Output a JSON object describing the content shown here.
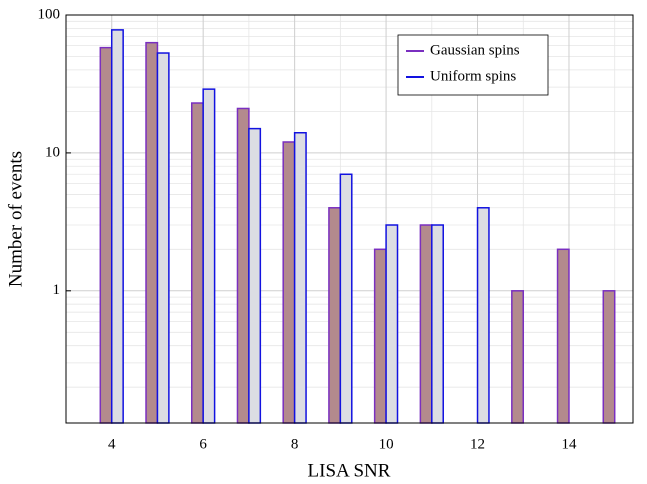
{
  "chart_data": {
    "type": "bar",
    "xlabel": "LISA SNR",
    "ylabel": "Number of events",
    "x": [
      4,
      5,
      6,
      7,
      8,
      9,
      10,
      11,
      12,
      13,
      14,
      15
    ],
    "series": [
      {
        "name": "Gaussian spins",
        "color": "#b38a8d",
        "edge": "#7a2fc0",
        "values": [
          58,
          63,
          23,
          21,
          12,
          4,
          2,
          3,
          null,
          1,
          2,
          1
        ]
      },
      {
        "name": "Uniform spins",
        "color": "#dcdde3",
        "edge": "#1212e0",
        "values": [
          78,
          53,
          29,
          15,
          14,
          7,
          3,
          3,
          4,
          null,
          null,
          null
        ]
      }
    ],
    "xlim": [
      3,
      15.4
    ],
    "xticks": [
      4,
      6,
      8,
      10,
      12,
      14
    ],
    "ylim": [
      0.11,
      100
    ],
    "yticks": [
      1,
      10,
      100
    ],
    "log_y": true,
    "grid": true,
    "legend": "upper right"
  }
}
